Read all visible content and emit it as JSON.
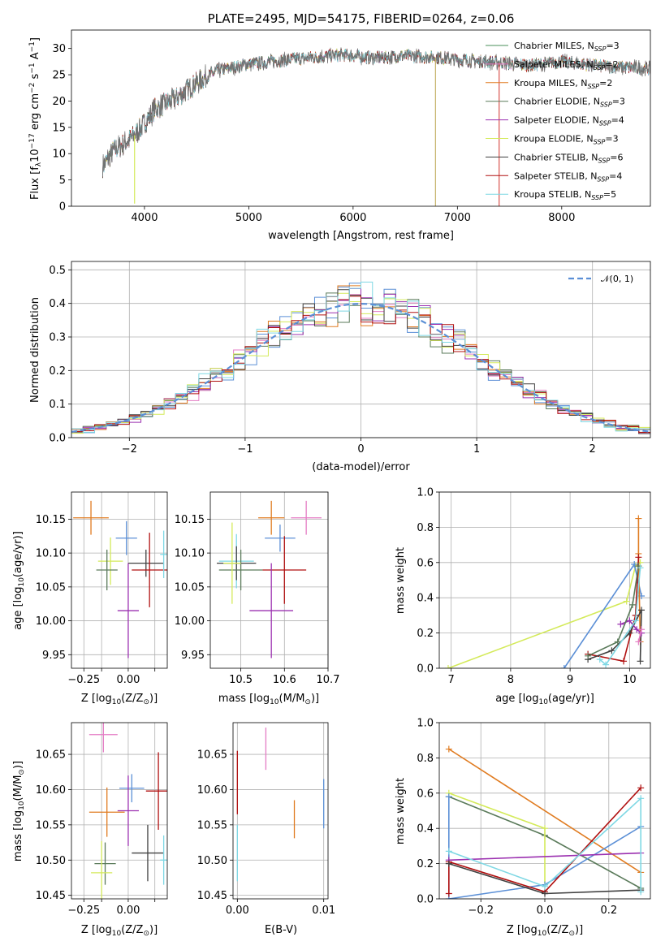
{
  "chart_data": [
    {
      "id": "spectrum",
      "type": "line",
      "title": "PLATE=2495, MJD=54175, FIBERID=0264, z=0.06",
      "xlabel": "wavelength [Angstrom, rest frame]",
      "ylabel_parts": [
        "Flux [f",
        "λ",
        "10",
        "−17",
        " erg cm",
        "−2",
        " s",
        "−1",
        " A",
        "−1",
        "]"
      ],
      "xlim": [
        3300,
        8850
      ],
      "ylim": [
        0,
        33.5
      ],
      "xticks": [
        4000,
        5000,
        6000,
        7000,
        8000
      ],
      "yticks": [
        0,
        5,
        10,
        15,
        20,
        25,
        30
      ],
      "grid": false,
      "legend_position": "top-right",
      "wavelength_range": [
        3600,
        8900
      ],
      "continuum": {
        "x": [
          3600,
          3700,
          3850,
          3950,
          4100,
          4300,
          4500,
          4700,
          5000,
          5300,
          5600,
          5900,
          6200,
          6500,
          6800,
          7100,
          7400,
          7700,
          8000,
          8400,
          8900
        ],
        "y": [
          7.5,
          10.5,
          12.5,
          14.5,
          18.5,
          20.5,
          23.5,
          25.8,
          27,
          27.7,
          28.3,
          28.8,
          28.2,
          28.6,
          28.3,
          27.7,
          27.3,
          26.8,
          27.5,
          26.6,
          26.1
        ]
      },
      "noise_amplitude": 1.1,
      "artifacts": [
        {
          "x": 3905,
          "y0": 13.5,
          "y1": 0.5,
          "color": "#d4ea5a"
        },
        {
          "x": 6790,
          "y0": 28.3,
          "y1": -2,
          "color": "#c6b36a"
        },
        {
          "x": 7400,
          "y0": 27.3,
          "y1": -2,
          "color": "#d9534f"
        }
      ],
      "series": [
        {
          "name_parts": [
            "Chabrier MILES, N",
            "SSP",
            "=3"
          ],
          "color": "#4a8f5a"
        },
        {
          "name_parts": [
            "Salpeter MILES, N",
            "SSP",
            "=2"
          ],
          "color": "#e47cc4"
        },
        {
          "name_parts": [
            "Kroupa MILES, N",
            "SSP",
            "=2"
          ],
          "color": "#e07b20"
        },
        {
          "name_parts": [
            "Chabrier ELODIE, N",
            "SSP",
            "=3"
          ],
          "color": "#5a7a5a"
        },
        {
          "name_parts": [
            "Salpeter ELODIE, N",
            "SSP",
            "=4"
          ],
          "color": "#9b30b0"
        },
        {
          "name_parts": [
            "Kroupa ELODIE, N",
            "SSP",
            "=3"
          ],
          "color": "#d4ea5a"
        },
        {
          "name_parts": [
            "Chabrier STELIB, N",
            "SSP",
            "=6"
          ],
          "color": "#404040"
        },
        {
          "name_parts": [
            "Salpeter STELIB, N",
            "SSP",
            "=4"
          ],
          "color": "#b01010"
        },
        {
          "name_parts": [
            "Kroupa STELIB, N",
            "SSP",
            "=5"
          ],
          "color": "#7fd8e4"
        }
      ]
    },
    {
      "id": "residuals",
      "type": "histogram",
      "xlabel": "(data-model)/error",
      "ylabel": "Normed distribution",
      "xlim": [
        -2.5,
        2.5
      ],
      "ylim": [
        0,
        0.525
      ],
      "xticks": [
        -2,
        -1,
        0,
        1,
        2
      ],
      "yticks": [
        0,
        0.1,
        0.2,
        0.3,
        0.4,
        0.5
      ],
      "grid": true,
      "legend_position": "top-right",
      "reference": {
        "name": "𝒩(0, 1)",
        "color": "#5b8fd6",
        "mean": 0,
        "sigma": 1
      },
      "bin_width": 0.1,
      "bin_start": -2.5,
      "series_colors": [
        "#5b8fd6",
        "#e47cc4",
        "#e07b20",
        "#5a7a5a",
        "#9b30b0",
        "#d4ea5a",
        "#404040",
        "#b01010",
        "#7fd8e4"
      ]
    },
    {
      "id": "age-vs-Z",
      "type": "errorbar",
      "xlabel_parts": [
        "Z [log",
        "10",
        "(Z/Z",
        "⊙",
        ")]"
      ],
      "ylabel_parts": [
        "age  [log",
        "10",
        "(age/yr)]"
      ],
      "xlim": [
        -0.32,
        0.22
      ],
      "ylim": [
        9.93,
        10.19
      ],
      "xticks": [
        -0.25,
        -0.15,
        0.0,
        0.15
      ],
      "xtick_labels": [
        "−0.25",
        "",
        "0.00",
        ""
      ],
      "yticks": [
        9.95,
        10.0,
        10.05,
        10.1,
        10.15
      ],
      "grid": true,
      "points": [
        {
          "x": -0.21,
          "xerr": 0.1,
          "y": 10.152,
          "yerr": 0.025,
          "color": "#e07b20"
        },
        {
          "x": -0.01,
          "xerr": 0.06,
          "y": 10.122,
          "yerr": 0.025,
          "color": "#5b8fd6"
        },
        {
          "x": -0.1,
          "xerr": 0.07,
          "y": 10.088,
          "yerr": 0.035,
          "color": "#d4ea5a"
        },
        {
          "x": -0.12,
          "xerr": 0.06,
          "y": 10.075,
          "yerr": 0.03,
          "color": "#5a7a5a"
        },
        {
          "x": 0.1,
          "xerr": 0.1,
          "y": 10.085,
          "yerr": 0.02,
          "color": "#404040"
        },
        {
          "x": 0.12,
          "xerr": 0.1,
          "y": 10.075,
          "yerr": 0.055,
          "color": "#b01010"
        },
        {
          "x": 0.0,
          "xerr": 0.06,
          "y": 10.015,
          "yerr": 0.07,
          "color": "#9b30b0"
        },
        {
          "x": 0.2,
          "xerr": 0.02,
          "y": 10.098,
          "yerr": 0.035,
          "color": "#7fd8e4"
        }
      ]
    },
    {
      "id": "age-vs-mass",
      "type": "errorbar",
      "xlabel_parts": [
        "mass [log",
        "10",
        "(M/M",
        "⊙",
        ")]"
      ],
      "xlim": [
        10.43,
        10.7
      ],
      "ylim": [
        9.93,
        10.19
      ],
      "xticks": [
        10.5,
        10.6,
        10.7
      ],
      "yticks": [
        9.95,
        10.0,
        10.05,
        10.1,
        10.15
      ],
      "grid": true,
      "points": [
        {
          "x": 10.57,
          "xerr": 0.03,
          "y": 10.152,
          "yerr": 0.025,
          "color": "#e07b20"
        },
        {
          "x": 10.65,
          "xerr": 0.035,
          "y": 10.152,
          "yerr": 0.025,
          "color": "#e47cc4"
        },
        {
          "x": 10.59,
          "xerr": 0.035,
          "y": 10.122,
          "yerr": 0.02,
          "color": "#5b8fd6"
        },
        {
          "x": 10.49,
          "xerr": 0.04,
          "y": 10.088,
          "yerr": 0.04,
          "color": "#7fd8e4"
        },
        {
          "x": 10.49,
          "xerr": 0.045,
          "y": 10.085,
          "yerr": 0.025,
          "color": "#404040"
        },
        {
          "x": 10.5,
          "xerr": 0.05,
          "y": 10.075,
          "yerr": 0.03,
          "color": "#5a7a5a"
        },
        {
          "x": 10.48,
          "xerr": 0.02,
          "y": 10.085,
          "yerr": 0.06,
          "color": "#d4ea5a"
        },
        {
          "x": 10.6,
          "xerr": 0.05,
          "y": 10.075,
          "yerr": 0.05,
          "color": "#b01010"
        },
        {
          "x": 10.57,
          "xerr": 0.05,
          "y": 10.015,
          "yerr": 0.07,
          "color": "#9b30b0"
        }
      ]
    },
    {
      "id": "massweight-vs-age",
      "type": "line",
      "xlabel_parts": [
        "age  [log",
        "10",
        "(age/yr)]"
      ],
      "ylabel": "mass weight",
      "xlim": [
        6.8,
        10.35
      ],
      "ylim": [
        0,
        1.0
      ],
      "xticks": [
        7,
        8,
        9,
        10
      ],
      "yticks": [
        0.0,
        0.2,
        0.4,
        0.6,
        0.8,
        1.0
      ],
      "grid": true,
      "series": [
        {
          "color": "#d4ea5a",
          "x": [
            6.95,
            9.95,
            10.1,
            10.18
          ],
          "y": [
            0.0,
            0.38,
            0.58,
            0.6
          ]
        },
        {
          "color": "#5b8fd6",
          "x": [
            8.9,
            10.08,
            10.2
          ],
          "y": [
            0.0,
            0.59,
            0.41
          ]
        },
        {
          "color": "#e07b20",
          "x": [
            10.15,
            10.15,
            10.18
          ],
          "y": [
            0.85,
            0.65,
            0.15
          ]
        },
        {
          "color": "#b01010",
          "x": [
            9.3,
            9.9,
            10.1,
            10.15
          ],
          "y": [
            0.08,
            0.04,
            0.3,
            0.63
          ]
        },
        {
          "color": "#404040",
          "x": [
            9.3,
            9.7,
            10.0,
            10.2,
            10.18
          ],
          "y": [
            0.05,
            0.1,
            0.2,
            0.33,
            0.04
          ]
        },
        {
          "color": "#9b30b0",
          "x": [
            9.85,
            10.0,
            10.12,
            10.2
          ],
          "y": [
            0.25,
            0.27,
            0.22,
            0.2
          ]
        },
        {
          "color": "#5a7a5a",
          "x": [
            9.3,
            9.8,
            10.05,
            10.15
          ],
          "y": [
            0.07,
            0.15,
            0.36,
            0.58
          ]
        },
        {
          "color": "#7fd8e4",
          "x": [
            9.5,
            9.6,
            10.1,
            10.18
          ],
          "y": [
            0.05,
            0.02,
            0.27,
            0.57
          ]
        },
        {
          "color": "#e47cc4",
          "x": [
            10.15,
            10.2
          ],
          "y": [
            0.15,
            0.22
          ]
        }
      ]
    },
    {
      "id": "mass-vs-Z",
      "type": "errorbar",
      "xlabel_parts": [
        "Z [log",
        "10",
        "(Z/Z",
        "⊙",
        ")]"
      ],
      "ylabel_parts": [
        "mass [log",
        "10",
        "(M/M",
        "⊙",
        ")]"
      ],
      "xlim": [
        -0.32,
        0.22
      ],
      "ylim": [
        10.445,
        10.695
      ],
      "xticks": [
        -0.25,
        -0.15,
        0.0,
        0.15
      ],
      "xtick_labels": [
        "−0.25",
        "",
        "0.00",
        ""
      ],
      "yticks": [
        10.45,
        10.5,
        10.55,
        10.6,
        10.65
      ],
      "grid": true,
      "points": [
        {
          "x": -0.14,
          "xerr": 0.08,
          "y": 10.678,
          "yerr": 0.025,
          "color": "#e47cc4"
        },
        {
          "x": -0.12,
          "xerr": 0.1,
          "y": 10.568,
          "yerr": 0.035,
          "color": "#e07b20"
        },
        {
          "x": 0.02,
          "xerr": 0.07,
          "y": 10.602,
          "yerr": 0.02,
          "color": "#5b8fd6"
        },
        {
          "x": 0.17,
          "xerr": 0.07,
          "y": 10.598,
          "yerr": 0.055,
          "color": "#b01010"
        },
        {
          "x": 0.0,
          "xerr": 0.06,
          "y": 10.57,
          "yerr": 0.05,
          "color": "#9b30b0"
        },
        {
          "x": 0.11,
          "xerr": 0.09,
          "y": 10.51,
          "yerr": 0.04,
          "color": "#404040"
        },
        {
          "x": -0.13,
          "xerr": 0.06,
          "y": 10.495,
          "yerr": 0.03,
          "color": "#5a7a5a"
        },
        {
          "x": -0.15,
          "xerr": 0.06,
          "y": 10.482,
          "yerr": 0.045,
          "color": "#d4ea5a"
        },
        {
          "x": 0.2,
          "xerr": 0.02,
          "y": 10.5,
          "yerr": 0.035,
          "color": "#7fd8e4"
        }
      ]
    },
    {
      "id": "mass-vs-EBV",
      "type": "errorbar",
      "xlabel": "E(B-V)",
      "xlim": [
        -0.0005,
        0.0105
      ],
      "ylim": [
        10.445,
        10.695
      ],
      "xticks": [
        0.0,
        0.01
      ],
      "xtick_labels": [
        "0.00",
        "0.01"
      ],
      "yticks": [
        10.45,
        10.5,
        10.55,
        10.6,
        10.65
      ],
      "grid": true,
      "points": [
        {
          "x": 0.0,
          "xerr": 0,
          "y": 10.61,
          "yerr": 0.045,
          "color": "#b01010"
        },
        {
          "x": 0.0,
          "xerr": 0,
          "y": 10.51,
          "yerr": 0.04,
          "color": "#7fd8e4"
        },
        {
          "x": 0.0033,
          "xerr": 0,
          "y": 10.658,
          "yerr": 0.03,
          "color": "#e47cc4"
        },
        {
          "x": 0.0066,
          "xerr": 0,
          "y": 10.558,
          "yerr": 0.027,
          "color": "#e07b20"
        },
        {
          "x": 0.01,
          "xerr": 0,
          "y": 10.58,
          "yerr": 0.035,
          "color": "#5b8fd6"
        }
      ]
    },
    {
      "id": "massweight-vs-Z",
      "type": "line",
      "xlabel_parts": [
        "Z [log",
        "10",
        "(Z/Z",
        "⊙",
        ")]"
      ],
      "ylabel": "mass weight",
      "xlim": [
        -0.33,
        0.33
      ],
      "ylim": [
        0,
        1.0
      ],
      "xticks": [
        -0.2,
        0.0,
        0.2
      ],
      "xtick_labels": [
        "−0.2",
        "0.0",
        "0.2"
      ],
      "yticks": [
        0.0,
        0.2,
        0.4,
        0.6,
        0.8,
        1.0
      ],
      "grid": true,
      "series": [
        {
          "color": "#e07b20",
          "x": [
            -0.3,
            0.3
          ],
          "y": [
            0.85,
            0.15
          ]
        },
        {
          "color": "#5a7a5a",
          "x": [
            -0.3,
            0.0,
            0.3
          ],
          "y": [
            0.58,
            0.36,
            0.06
          ]
        },
        {
          "color": "#d4ea5a",
          "x": [
            -0.3,
            0.0,
            0.0
          ],
          "y": [
            0.6,
            0.4,
            0.08
          ]
        },
        {
          "color": "#5b8fd6",
          "x": [
            -0.3,
            -0.3,
            0.0,
            0.3
          ],
          "y": [
            0.58,
            0.0,
            0.08,
            0.41
          ]
        },
        {
          "color": "#b01010",
          "x": [
            -0.3,
            -0.3,
            0.0,
            0.3
          ],
          "y": [
            0.03,
            0.21,
            0.04,
            0.63
          ]
        },
        {
          "color": "#9b30b0",
          "x": [
            -0.3,
            0.3
          ],
          "y": [
            0.22,
            0.26
          ]
        },
        {
          "color": "#404040",
          "x": [
            -0.3,
            0.0,
            0.3
          ],
          "y": [
            0.2,
            0.03,
            0.05
          ]
        },
        {
          "color": "#7fd8e4",
          "x": [
            -0.3,
            0.0,
            0.3,
            0.3
          ],
          "y": [
            0.27,
            0.07,
            0.57,
            0.04
          ]
        }
      ]
    }
  ]
}
